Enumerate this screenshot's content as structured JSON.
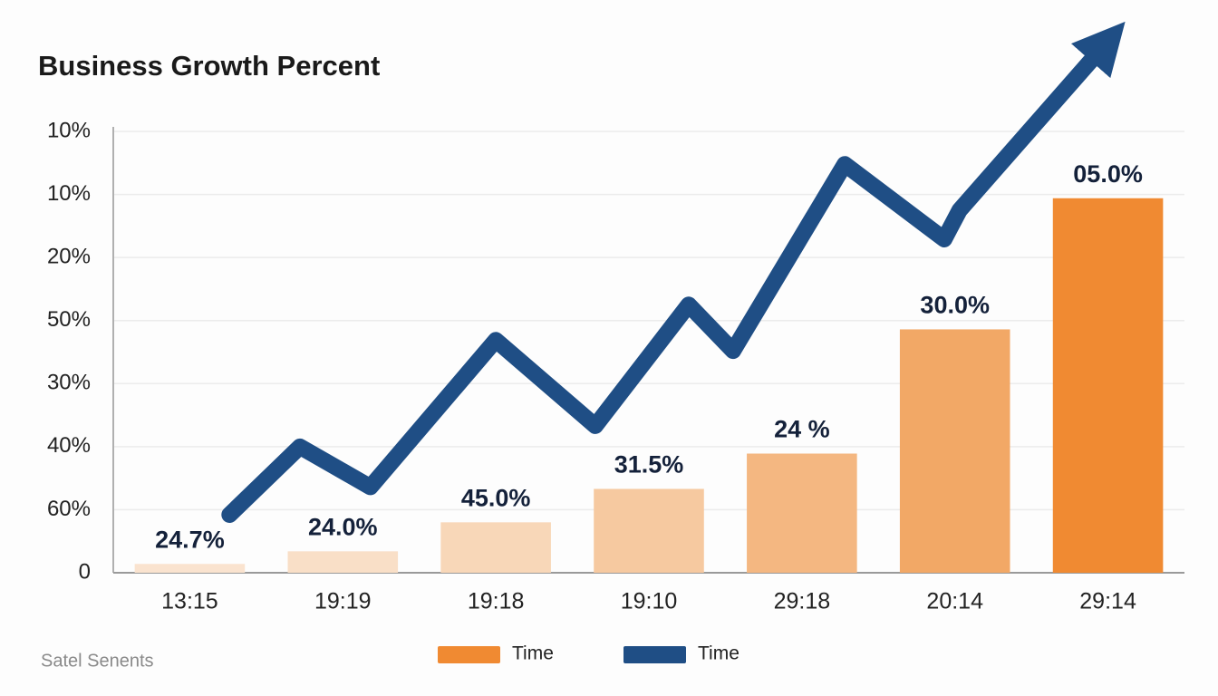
{
  "chart_data": {
    "type": "bar",
    "title": "Business Growth Percent",
    "categories": [
      "13:15",
      "19:19",
      "19:18",
      "19:10",
      "29:18",
      "20:14",
      "29:14"
    ],
    "xlim": [
      -0.5,
      6.5
    ],
    "ylim": [
      0,
      7
    ],
    "yticks": [
      0,
      {
        "value": 1,
        "label": "60%"
      },
      {
        "value": 2,
        "label": "40%"
      },
      {
        "value": 3,
        "label": "30%"
      },
      {
        "value": 4,
        "label": "50%"
      },
      {
        "value": 5,
        "label": "20%"
      },
      {
        "value": 6,
        "label": "10%"
      },
      {
        "value": 7,
        "label": "10%"
      }
    ],
    "grid": true,
    "series": [
      {
        "name": "Time",
        "type": "bar",
        "color": "#f08a32",
        "colors": [
          "#fae3cf",
          "#f9dfc7",
          "#f8d7b8",
          "#f6c9a0",
          "#f4b781",
          "#f2a866",
          "#f08a32"
        ],
        "values": [
          0.14,
          0.34,
          0.8,
          1.33,
          1.89,
          3.86,
          5.94
        ],
        "bar_labels": [
          "24.7%",
          "24.0%",
          "45.0%",
          "31.5%",
          "24 %",
          "30.0%",
          "05.0%"
        ]
      },
      {
        "name": "Time",
        "type": "line",
        "color": "#1f4e85",
        "x": [
          0.26,
          0.72,
          1.18,
          2.0,
          2.65,
          3.26,
          3.55,
          4.28,
          4.93,
          5.03,
          6.0
        ],
        "values": [
          0.92,
          2.0,
          1.36,
          3.69,
          2.33,
          4.25,
          3.52,
          6.48,
          5.29,
          5.75,
          8.43
        ]
      }
    ],
    "source": "Satel Senents"
  }
}
